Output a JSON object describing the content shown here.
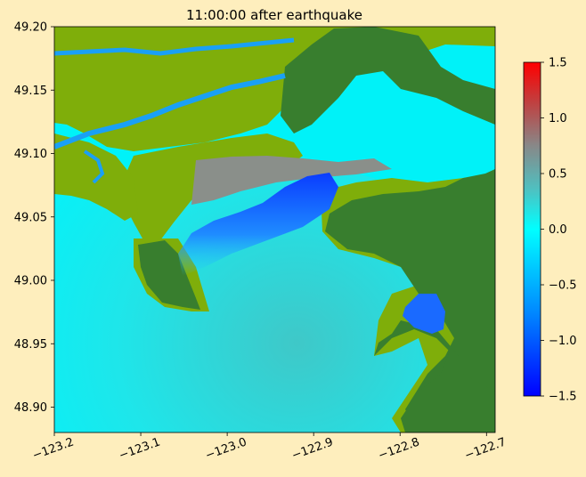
{
  "chart_data": {
    "type": "heatmap",
    "title": "11:00:00 after earthquake",
    "xlabel": "",
    "ylabel": "",
    "xlim": [
      -123.2,
      -122.69
    ],
    "ylim": [
      48.88,
      49.2
    ],
    "x_ticks": [
      -123.2,
      -123.1,
      -123.0,
      -122.9,
      -122.8,
      -122.7
    ],
    "x_tick_labels": [
      "−123.2",
      "−123.1",
      "−123.0",
      "−122.9",
      "−122.8",
      "−122.7"
    ],
    "y_ticks": [
      49.2,
      49.15,
      49.1,
      49.05,
      49.0,
      48.95,
      48.9
    ],
    "y_tick_labels": [
      "49.20",
      "49.15",
      "49.10",
      "49.05",
      "49.00",
      "48.95",
      "48.90"
    ],
    "colorbar": {
      "range": [
        -1.5,
        1.5
      ],
      "ticks": [
        1.5,
        1.0,
        0.5,
        0.0,
        -0.5,
        -1.0,
        -1.5
      ],
      "tick_labels": [
        "1.5",
        "1.0",
        "0.5",
        "0.0",
        "−0.5",
        "−1.0",
        "−1.5"
      ],
      "colors": [
        "#0000ff",
        "#0088ff",
        "#00ffff",
        "#4fc0c0",
        "#888888",
        "#c04040",
        "#ff0000"
      ]
    },
    "colors": {
      "water_base": "#1de9ea",
      "drawdown": "#0a4cff",
      "land_low": "#7fae0a",
      "land_high": "#387e2e",
      "river": "#1aa0f5",
      "flooded": "#00f2f8"
    }
  }
}
